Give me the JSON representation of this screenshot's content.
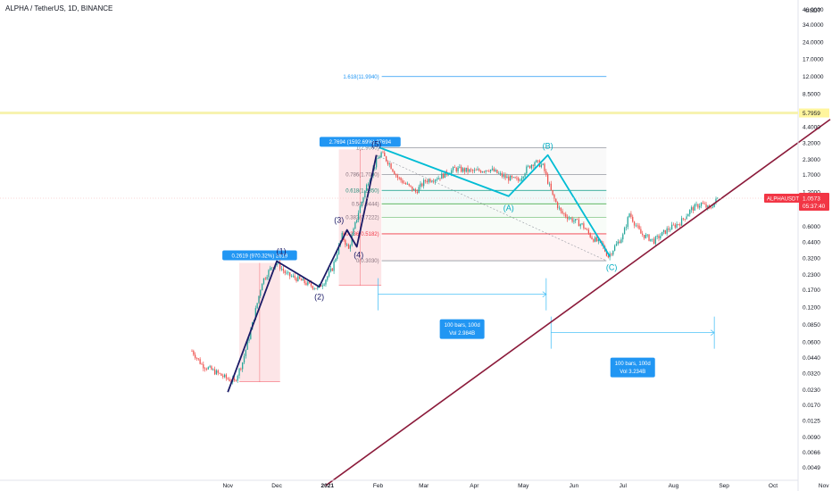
{
  "symbol_title": "ALPHA / TetherUS, 1D, BINANCE",
  "axis_unit": "USDT",
  "colors": {
    "up": "#26a69a",
    "down": "#ef5350",
    "impulse": "#1a1a66",
    "abc": "#00bcd4",
    "trendline": "#8b1a3a",
    "fib_highlight": "#f7f3b0",
    "badge_blue": "#2196f3",
    "badge_red": "#f23645"
  },
  "chart_data": {
    "type": "candlestick",
    "y_scale": "log",
    "ylim": [
      0.0042,
      48
    ],
    "xlim": [
      "2020-10-10",
      "2021-11-05"
    ],
    "x_ticks": [
      {
        "date": "2020-11-01",
        "label": "Nov"
      },
      {
        "date": "2020-12-01",
        "label": "Dec"
      },
      {
        "date": "2021-01-01",
        "label": "2021"
      },
      {
        "date": "2021-02-01",
        "label": "Feb"
      },
      {
        "date": "2021-03-01",
        "label": "Mar"
      },
      {
        "date": "2021-04-01",
        "label": "Apr"
      },
      {
        "date": "2021-05-01",
        "label": "May"
      },
      {
        "date": "2021-06-01",
        "label": "Jun"
      },
      {
        "date": "2021-07-01",
        "label": "Jul"
      },
      {
        "date": "2021-08-01",
        "label": "Aug"
      },
      {
        "date": "2021-09-01",
        "label": "Sep"
      },
      {
        "date": "2021-10-01",
        "label": "Oct"
      },
      {
        "date": "2021-11-01",
        "label": "Nov"
      }
    ],
    "y_ticks": [
      {
        "value": 46,
        "label": "46.0000"
      },
      {
        "value": 34,
        "label": "34.0000"
      },
      {
        "value": 24,
        "label": "24.0000"
      },
      {
        "value": 17,
        "label": "17.0000"
      },
      {
        "value": 12,
        "label": "12.0000"
      },
      {
        "value": 8.5,
        "label": "8.5000"
      },
      {
        "value": 4.4,
        "label": "4.4000"
      },
      {
        "value": 3.2,
        "label": "3.2000"
      },
      {
        "value": 2.3,
        "label": "2.3000"
      },
      {
        "value": 1.7,
        "label": "1.7000"
      },
      {
        "value": 0.6,
        "label": "0.6000"
      },
      {
        "value": 0.44,
        "label": "0.4400"
      },
      {
        "value": 0.32,
        "label": "0.3200"
      },
      {
        "value": 0.23,
        "label": "0.2300"
      },
      {
        "value": 0.17,
        "label": "0.1700"
      },
      {
        "value": 0.12,
        "label": "0.1200"
      },
      {
        "value": 0.085,
        "label": "0.0850"
      },
      {
        "value": 0.06,
        "label": "0.0600"
      },
      {
        "value": 0.044,
        "label": "0.0440"
      },
      {
        "value": 0.032,
        "label": "0.0320"
      },
      {
        "value": 0.023,
        "label": "0.0230"
      },
      {
        "value": 0.017,
        "label": "0.0170"
      },
      {
        "value": 0.0125,
        "label": "0.0125"
      },
      {
        "value": 0.009,
        "label": "0.0090"
      },
      {
        "value": 0.0066,
        "label": "0.0066"
      },
      {
        "value": 0.0049,
        "label": "0.0049"
      }
    ],
    "price_badges": [
      {
        "value": 5.7959,
        "label": "5.7959",
        "style": "highlight"
      },
      {
        "value": 1.2,
        "label": "1.2000",
        "style": "plain"
      },
      {
        "value": 1.0573,
        "label": "1.0573",
        "sub_label": "05:37:40",
        "style": "current"
      }
    ],
    "current_price_label": "ALPHAUSDT",
    "candle_anchors": [
      {
        "date": "2020-10-10",
        "close": 0.05
      },
      {
        "date": "2020-10-16",
        "close": 0.038
      },
      {
        "date": "2020-10-24",
        "close": 0.033
      },
      {
        "date": "2020-10-31",
        "close": 0.029
      },
      {
        "date": "2020-11-05",
        "close": 0.027
      },
      {
        "date": "2020-11-10",
        "close": 0.04
      },
      {
        "date": "2020-11-16",
        "close": 0.085
      },
      {
        "date": "2020-11-22",
        "close": 0.2
      },
      {
        "date": "2020-11-28",
        "close": 0.27
      },
      {
        "date": "2020-12-01",
        "close": 0.29
      },
      {
        "date": "2020-12-07",
        "close": 0.23
      },
      {
        "date": "2020-12-14",
        "close": 0.21
      },
      {
        "date": "2020-12-20",
        "close": 0.19
      },
      {
        "date": "2020-12-26",
        "close": 0.175
      },
      {
        "date": "2020-12-30",
        "close": 0.2
      },
      {
        "date": "2021-01-04",
        "close": 0.26
      },
      {
        "date": "2021-01-10",
        "close": 0.5
      },
      {
        "date": "2021-01-14",
        "close": 0.38
      },
      {
        "date": "2021-01-20",
        "close": 0.8
      },
      {
        "date": "2021-01-26",
        "close": 1.5
      },
      {
        "date": "2021-01-31",
        "close": 2.2
      },
      {
        "date": "2021-02-03",
        "close": 2.6
      },
      {
        "date": "2021-02-08",
        "close": 2.1
      },
      {
        "date": "2021-02-13",
        "close": 1.6
      },
      {
        "date": "2021-02-18",
        "close": 1.4
      },
      {
        "date": "2021-02-24",
        "close": 1.2
      },
      {
        "date": "2021-03-02",
        "close": 1.5
      },
      {
        "date": "2021-03-10",
        "close": 1.6
      },
      {
        "date": "2021-03-20",
        "close": 1.9
      },
      {
        "date": "2021-04-01",
        "close": 1.8
      },
      {
        "date": "2021-04-10",
        "close": 1.9
      },
      {
        "date": "2021-04-20",
        "close": 1.6
      },
      {
        "date": "2021-04-28",
        "close": 1.5
      },
      {
        "date": "2021-05-03",
        "close": 1.9
      },
      {
        "date": "2021-05-08",
        "close": 2.2
      },
      {
        "date": "2021-05-13",
        "close": 2.0
      },
      {
        "date": "2021-05-19",
        "close": 1.1
      },
      {
        "date": "2021-05-24",
        "close": 0.8
      },
      {
        "date": "2021-05-30",
        "close": 0.7
      },
      {
        "date": "2021-06-06",
        "close": 0.62
      },
      {
        "date": "2021-06-12",
        "close": 0.48
      },
      {
        "date": "2021-06-18",
        "close": 0.42
      },
      {
        "date": "2021-06-22",
        "close": 0.33
      },
      {
        "date": "2021-06-26",
        "close": 0.4
      },
      {
        "date": "2021-07-01",
        "close": 0.5
      },
      {
        "date": "2021-07-05",
        "close": 0.78
      },
      {
        "date": "2021-07-08",
        "close": 0.65
      },
      {
        "date": "2021-07-12",
        "close": 0.52
      },
      {
        "date": "2021-07-20",
        "close": 0.45
      },
      {
        "date": "2021-07-28",
        "close": 0.56
      },
      {
        "date": "2021-08-05",
        "close": 0.65
      },
      {
        "date": "2021-08-12",
        "close": 0.85
      },
      {
        "date": "2021-08-18",
        "close": 0.95
      },
      {
        "date": "2021-08-23",
        "close": 0.85
      },
      {
        "date": "2021-08-28",
        "close": 1.057
      }
    ],
    "elliott_impulse": [
      {
        "date": "2020-11-01",
        "value": 0.022
      },
      {
        "date": "2020-12-01",
        "value": 0.3,
        "label": "(1)"
      },
      {
        "date": "2020-12-27",
        "value": 0.18,
        "label": "(2)"
      },
      {
        "date": "2021-01-13",
        "value": 0.56,
        "label": "(3)"
      },
      {
        "date": "2021-01-19",
        "value": 0.4,
        "label": "(4)"
      },
      {
        "date": "2021-01-31",
        "value": 2.5,
        "label": "(5)"
      }
    ],
    "elliott_abc": [
      {
        "date": "2021-02-02",
        "value": 2.9
      },
      {
        "date": "2021-04-22",
        "value": 1.1,
        "label": "(A)"
      },
      {
        "date": "2021-05-16",
        "value": 2.5,
        "label": "(B)"
      },
      {
        "date": "2021-06-23",
        "value": 0.33,
        "label": "(C)"
      }
    ],
    "trendline": [
      {
        "date": "2020-12-31",
        "value": 0.0034
      },
      {
        "date": "2021-11-05",
        "value": 5.1
      }
    ],
    "fib_retracement": {
      "start_date": "2021-01-31",
      "end_date": "2021-06-22",
      "levels": [
        {
          "ratio": "1",
          "value": 2.9,
          "label": "1(2.9000)"
        },
        {
          "ratio": "0.786",
          "value": 1.7,
          "label": "0.786(1.7000)"
        },
        {
          "ratio": "0.618",
          "value": 1.235,
          "label": "0.618(1.2350)"
        },
        {
          "ratio": "0.5",
          "value": 0.9444,
          "label": "0.5(0.9444)"
        },
        {
          "ratio": "0.382",
          "value": 0.7222,
          "label": "0.382(0.7222)"
        },
        {
          "ratio": "0.236",
          "value": 0.5182,
          "label": "0.236(0.5182)"
        },
        {
          "ratio": "0",
          "value": 0.303,
          "label": "0(0.3030)"
        }
      ],
      "extension": {
        "value": 11.994,
        "label": "1.618(11.9940)"
      }
    },
    "range_boxes": [
      {
        "start_date": "2020-11-08",
        "end_date": "2020-12-03",
        "low": 0.027,
        "high": 0.29,
        "label": "0.2619 (970.32%) 2619"
      },
      {
        "start_date": "2021-01-08",
        "end_date": "2021-02-03",
        "low": 0.185,
        "high": 2.8,
        "label": "2.7694 (1592.69%) 27694"
      }
    ],
    "projections": [
      {
        "start_date": "2021-02-01",
        "end_date": "2021-05-15",
        "value": 0.155,
        "label_lines": [
          "100 bars, 100d",
          "Vol 2.984B"
        ]
      },
      {
        "start_date": "2021-05-18",
        "end_date": "2021-08-26",
        "value": 0.072,
        "label_lines": [
          "100 bars, 100d",
          "Vol 3.234B"
        ]
      }
    ]
  }
}
